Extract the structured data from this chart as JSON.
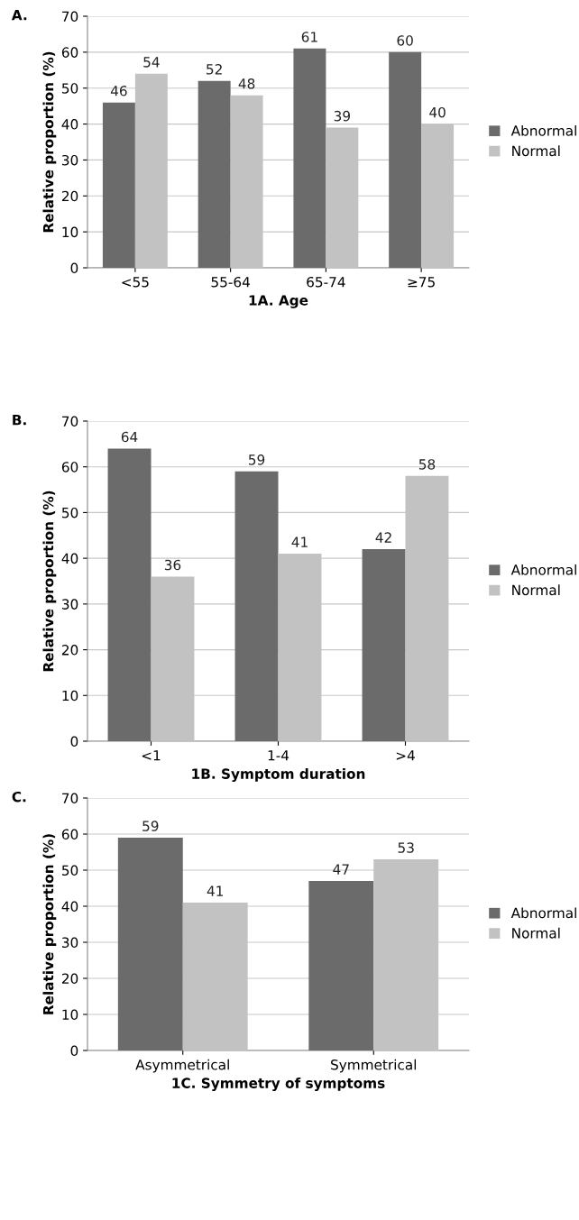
{
  "chart_data": [
    {
      "type": "bar",
      "title": "A.",
      "xlabel": "1A. Age",
      "ylabel": "Relative proportion (%)",
      "categories": [
        "<55",
        "55-64",
        "65-74",
        "≥75"
      ],
      "series": [
        {
          "name": "Abnormal",
          "color": "#6b6b6b",
          "values": [
            46,
            52,
            61,
            60
          ]
        },
        {
          "name": "Normal",
          "color": "#c2c2c2",
          "values": [
            54,
            48,
            39,
            40
          ]
        }
      ],
      "ylim": [
        0,
        70
      ],
      "yticks": [
        0,
        10,
        20,
        30,
        40,
        50,
        60,
        70
      ],
      "grid": "y",
      "legend": "right",
      "data_labels": true
    },
    {
      "type": "bar",
      "title": "B.",
      "xlabel": "1B. Symptom duration",
      "ylabel": "Relative proportion (%)",
      "categories": [
        "<1",
        "1-4",
        ">4"
      ],
      "series": [
        {
          "name": "Abnormal",
          "color": "#6b6b6b",
          "values": [
            64,
            59,
            42
          ]
        },
        {
          "name": "Normal",
          "color": "#c2c2c2",
          "values": [
            36,
            41,
            58
          ]
        }
      ],
      "ylim": [
        0,
        70
      ],
      "yticks": [
        0,
        10,
        20,
        30,
        40,
        50,
        60,
        70
      ],
      "grid": "y",
      "legend": "right",
      "data_labels": true
    },
    {
      "type": "bar",
      "title": "C.",
      "xlabel": "1C. Symmetry of symptoms",
      "ylabel": "Relative proportion (%)",
      "categories": [
        "Asymmetrical",
        "Symmetrical"
      ],
      "series": [
        {
          "name": "Abnormal",
          "color": "#6b6b6b",
          "values": [
            59,
            47
          ]
        },
        {
          "name": "Normal",
          "color": "#c2c2c2",
          "values": [
            41,
            53
          ]
        }
      ],
      "ylim": [
        0,
        70
      ],
      "yticks": [
        0,
        10,
        20,
        30,
        40,
        50,
        60,
        70
      ],
      "grid": "y",
      "legend": "right",
      "data_labels": true
    }
  ]
}
